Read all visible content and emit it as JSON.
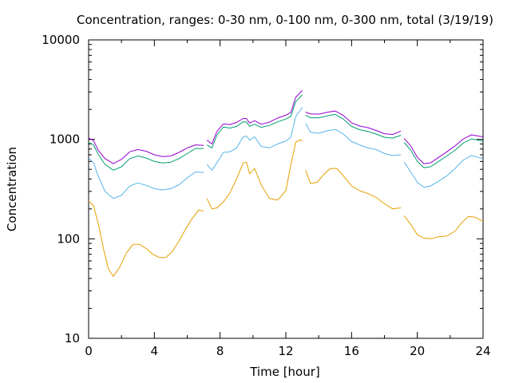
{
  "chart_data": {
    "type": "line",
    "title": "Concentration, ranges: 0-30 nm, 0-100 nm, 0-300 nm, total (3/19/19)",
    "xlabel": "Time [hour]",
    "ylabel": "Concentration",
    "xlim": [
      0,
      24
    ],
    "ylim": [
      10,
      10000
    ],
    "yscale": "log",
    "xticks": [
      "0",
      "4",
      "8",
      "12",
      "16",
      "20",
      "24"
    ],
    "yticks": [
      "10",
      "100",
      "1000",
      "10000"
    ],
    "grid": false,
    "legend": "none",
    "series": [
      {
        "color": "#e69f00",
        "segments": [
          [
            [
              0,
              240
            ],
            [
              0.3,
              215
            ],
            [
              0.6,
              140
            ],
            [
              0.9,
              80
            ],
            [
              1.2,
              50
            ],
            [
              1.5,
              42
            ],
            [
              1.9,
              52
            ],
            [
              2.3,
              72
            ],
            [
              2.7,
              88
            ],
            [
              3.1,
              88
            ],
            [
              3.5,
              80
            ],
            [
              3.9,
              70
            ],
            [
              4.3,
              65
            ],
            [
              4.7,
              65
            ],
            [
              5.1,
              75
            ],
            [
              5.5,
              95
            ],
            [
              5.9,
              125
            ],
            [
              6.3,
              160
            ],
            [
              6.7,
              195
            ],
            [
              7.0,
              190
            ]
          ],
          [
            [
              7.2,
              255
            ],
            [
              7.5,
              200
            ],
            [
              7.8,
              205
            ],
            [
              8.2,
              235
            ],
            [
              8.6,
              290
            ],
            [
              9.0,
              400
            ],
            [
              9.4,
              580
            ],
            [
              9.6,
              590
            ],
            [
              9.8,
              450
            ],
            [
              10.1,
              510
            ],
            [
              10.5,
              350
            ],
            [
              11.0,
              255
            ],
            [
              11.5,
              245
            ],
            [
              12.0,
              305
            ],
            [
              12.3,
              550
            ],
            [
              12.6,
              940
            ],
            [
              12.9,
              990
            ],
            [
              13.0,
              960
            ]
          ],
          [
            [
              13.2,
              490
            ],
            [
              13.5,
              360
            ],
            [
              13.9,
              370
            ],
            [
              14.3,
              440
            ],
            [
              14.7,
              510
            ],
            [
              15.1,
              510
            ],
            [
              15.5,
              430
            ],
            [
              16.0,
              340
            ],
            [
              16.5,
              305
            ],
            [
              17.0,
              285
            ],
            [
              17.5,
              260
            ],
            [
              18.0,
              225
            ],
            [
              18.5,
              200
            ],
            [
              19.0,
              205
            ]
          ],
          [
            [
              19.2,
              170
            ],
            [
              19.6,
              140
            ],
            [
              20.0,
              110
            ],
            [
              20.4,
              102
            ],
            [
              20.8,
              100
            ],
            [
              21.3,
              105
            ],
            [
              21.8,
              107
            ],
            [
              22.3,
              120
            ],
            [
              22.7,
              145
            ],
            [
              23.1,
              168
            ],
            [
              23.5,
              165
            ],
            [
              24,
              150
            ]
          ]
        ]
      },
      {
        "color": "#56b4e9",
        "segments": [
          [
            [
              0,
              650
            ],
            [
              0.3,
              580
            ],
            [
              0.6,
              420
            ],
            [
              1.0,
              300
            ],
            [
              1.5,
              255
            ],
            [
              2.0,
              275
            ],
            [
              2.5,
              340
            ],
            [
              3.0,
              365
            ],
            [
              3.5,
              345
            ],
            [
              4.0,
              320
            ],
            [
              4.5,
              310
            ],
            [
              5.0,
              320
            ],
            [
              5.5,
              350
            ],
            [
              6.0,
              410
            ],
            [
              6.5,
              470
            ],
            [
              7.0,
              465
            ]
          ],
          [
            [
              7.2,
              560
            ],
            [
              7.5,
              490
            ],
            [
              7.8,
              580
            ],
            [
              8.2,
              740
            ],
            [
              8.6,
              750
            ],
            [
              9.0,
              820
            ],
            [
              9.4,
              1060
            ],
            [
              9.6,
              1080
            ],
            [
              9.8,
              980
            ],
            [
              10.1,
              1060
            ],
            [
              10.5,
              850
            ],
            [
              11.0,
              820
            ],
            [
              11.5,
              900
            ],
            [
              12.0,
              960
            ],
            [
              12.3,
              1050
            ],
            [
              12.6,
              1700
            ],
            [
              13.0,
              2100
            ]
          ],
          [
            [
              13.2,
              1450
            ],
            [
              13.5,
              1180
            ],
            [
              14.0,
              1150
            ],
            [
              14.5,
              1220
            ],
            [
              15.0,
              1260
            ],
            [
              15.5,
              1130
            ],
            [
              16.0,
              950
            ],
            [
              16.5,
              880
            ],
            [
              17.0,
              820
            ],
            [
              17.5,
              790
            ],
            [
              18.0,
              720
            ],
            [
              18.5,
              690
            ],
            [
              19.0,
              700
            ]
          ],
          [
            [
              19.2,
              590
            ],
            [
              19.6,
              470
            ],
            [
              20.0,
              370
            ],
            [
              20.4,
              330
            ],
            [
              20.8,
              340
            ],
            [
              21.3,
              380
            ],
            [
              21.8,
              430
            ],
            [
              22.3,
              510
            ],
            [
              22.8,
              620
            ],
            [
              23.3,
              690
            ],
            [
              24,
              640
            ]
          ]
        ]
      },
      {
        "color": "#009e73",
        "segments": [
          [
            [
              0,
              930
            ],
            [
              0.3,
              880
            ],
            [
              0.6,
              700
            ],
            [
              1.0,
              560
            ],
            [
              1.5,
              490
            ],
            [
              2.0,
              530
            ],
            [
              2.5,
              640
            ],
            [
              3.0,
              680
            ],
            [
              3.5,
              650
            ],
            [
              4.0,
              600
            ],
            [
              4.5,
              580
            ],
            [
              5.0,
              590
            ],
            [
              5.5,
              640
            ],
            [
              6.0,
              720
            ],
            [
              6.5,
              810
            ],
            [
              7.0,
              810
            ]
          ],
          [
            [
              7.2,
              880
            ],
            [
              7.5,
              820
            ],
            [
              7.8,
              1100
            ],
            [
              8.2,
              1330
            ],
            [
              8.6,
              1300
            ],
            [
              9.0,
              1350
            ],
            [
              9.4,
              1500
            ],
            [
              9.6,
              1500
            ],
            [
              9.8,
              1350
            ],
            [
              10.1,
              1420
            ],
            [
              10.5,
              1320
            ],
            [
              11.0,
              1380
            ],
            [
              11.5,
              1500
            ],
            [
              12.0,
              1600
            ],
            [
              12.3,
              1700
            ],
            [
              12.6,
              2400
            ],
            [
              13.0,
              2800
            ]
          ],
          [
            [
              13.2,
              1750
            ],
            [
              13.5,
              1650
            ],
            [
              14.0,
              1650
            ],
            [
              14.5,
              1720
            ],
            [
              15.0,
              1780
            ],
            [
              15.5,
              1600
            ],
            [
              16.0,
              1350
            ],
            [
              16.5,
              1250
            ],
            [
              17.0,
              1200
            ],
            [
              17.5,
              1130
            ],
            [
              18.0,
              1050
            ],
            [
              18.5,
              1030
            ],
            [
              19.0,
              1100
            ]
          ],
          [
            [
              19.2,
              930
            ],
            [
              19.6,
              780
            ],
            [
              20.0,
              600
            ],
            [
              20.4,
              520
            ],
            [
              20.8,
              530
            ],
            [
              21.3,
              600
            ],
            [
              21.8,
              680
            ],
            [
              22.3,
              780
            ],
            [
              22.8,
              920
            ],
            [
              23.3,
              1010
            ],
            [
              24,
              960
            ]
          ]
        ]
      },
      {
        "color": "#9400d3",
        "segments": [
          [
            [
              0,
              1030
            ],
            [
              0.3,
              970
            ],
            [
              0.6,
              770
            ],
            [
              1.0,
              640
            ],
            [
              1.5,
              570
            ],
            [
              2.0,
              630
            ],
            [
              2.5,
              750
            ],
            [
              3.0,
              790
            ],
            [
              3.5,
              760
            ],
            [
              4.0,
              700
            ],
            [
              4.5,
              670
            ],
            [
              5.0,
              680
            ],
            [
              5.5,
              740
            ],
            [
              6.0,
              820
            ],
            [
              6.5,
              880
            ],
            [
              7.0,
              870
            ]
          ],
          [
            [
              7.2,
              980
            ],
            [
              7.5,
              900
            ],
            [
              7.8,
              1200
            ],
            [
              8.2,
              1430
            ],
            [
              8.6,
              1410
            ],
            [
              9.0,
              1480
            ],
            [
              9.4,
              1620
            ],
            [
              9.6,
              1620
            ],
            [
              9.8,
              1460
            ],
            [
              10.1,
              1540
            ],
            [
              10.5,
              1420
            ],
            [
              11.0,
              1490
            ],
            [
              11.5,
              1640
            ],
            [
              12.0,
              1750
            ],
            [
              12.3,
              1860
            ],
            [
              12.6,
              2650
            ],
            [
              13.0,
              3100
            ]
          ],
          [
            [
              13.2,
              1880
            ],
            [
              13.5,
              1800
            ],
            [
              14.0,
              1790
            ],
            [
              14.5,
              1870
            ],
            [
              15.0,
              1930
            ],
            [
              15.5,
              1740
            ],
            [
              16.0,
              1470
            ],
            [
              16.5,
              1360
            ],
            [
              17.0,
              1310
            ],
            [
              17.5,
              1230
            ],
            [
              18.0,
              1140
            ],
            [
              18.5,
              1120
            ],
            [
              19.0,
              1210
            ]
          ],
          [
            [
              19.2,
              1020
            ],
            [
              19.6,
              860
            ],
            [
              20.0,
              660
            ],
            [
              20.4,
              570
            ],
            [
              20.8,
              580
            ],
            [
              21.3,
              660
            ],
            [
              21.8,
              750
            ],
            [
              22.3,
              860
            ],
            [
              22.8,
              1010
            ],
            [
              23.3,
              1110
            ],
            [
              24,
              1060
            ]
          ]
        ]
      }
    ]
  }
}
